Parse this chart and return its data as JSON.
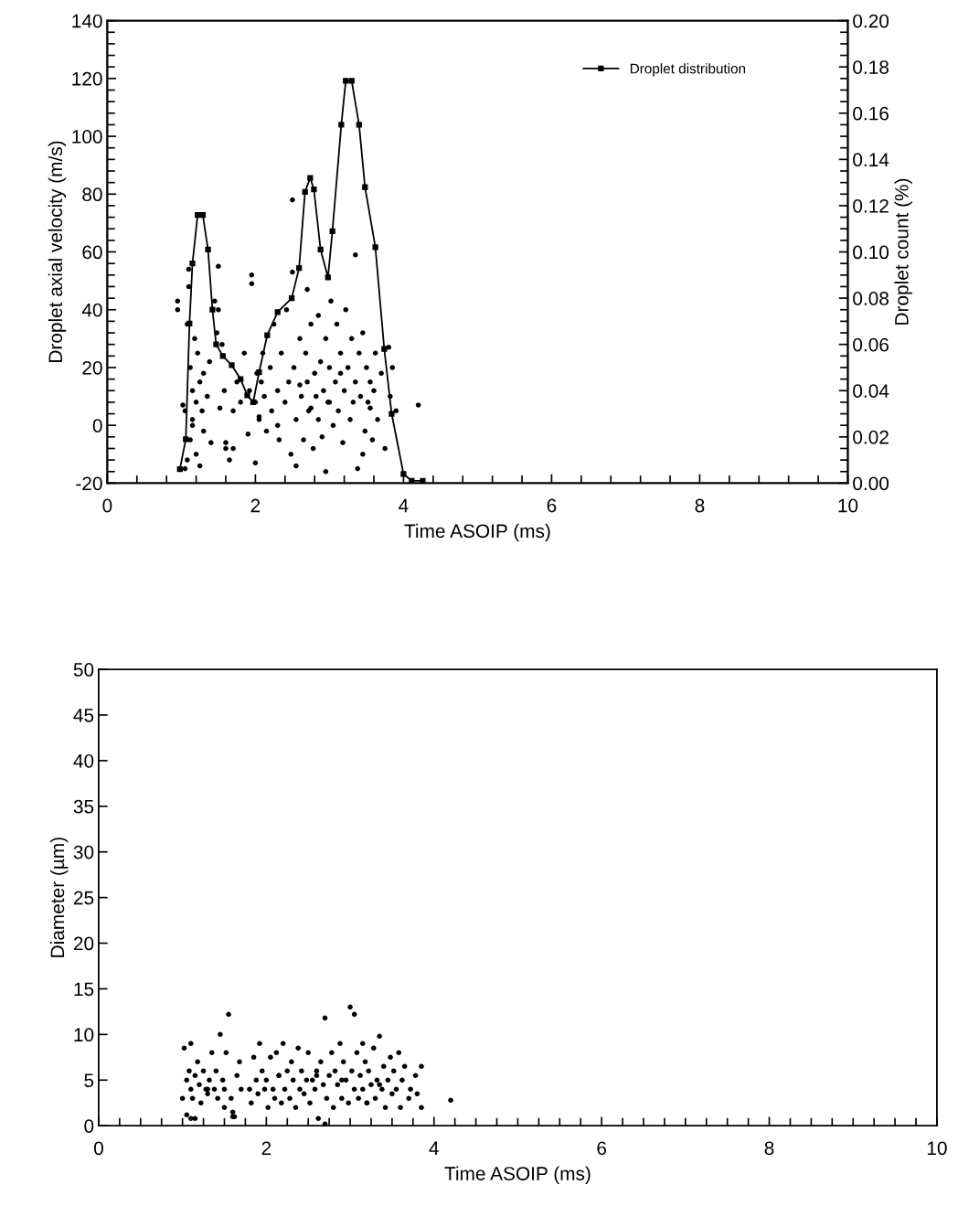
{
  "chart_data": [
    {
      "type": "scatter",
      "xlabel": "Time ASOIP (ms)",
      "ylabel": "Droplet axial velocity (m/s)",
      "y2label": "Droplet count (%)",
      "legend": "top right",
      "grid": false,
      "marker": "circle",
      "xlim": [
        0,
        10
      ],
      "ylim": [
        -20,
        140
      ],
      "y2lim": [
        0,
        0.2
      ],
      "xticks": [
        0,
        {
          "value": 0.4,
          "label": null
        },
        {
          "value": 0.8,
          "label": null
        },
        {
          "value": 1.2,
          "label": null
        },
        {
          "value": 1.6,
          "label": null
        },
        2,
        {
          "value": 2.4,
          "label": null
        },
        {
          "value": 2.8,
          "label": null
        },
        {
          "value": 3.2,
          "label": null
        },
        {
          "value": 3.6,
          "label": null
        },
        4,
        {
          "value": 4.4,
          "label": null
        },
        {
          "value": 4.8,
          "label": null
        },
        {
          "value": 5.2,
          "label": null
        },
        {
          "value": 5.6,
          "label": null
        },
        6,
        {
          "value": 6.4,
          "label": null
        },
        {
          "value": 6.8,
          "label": null
        },
        {
          "value": 7.2,
          "label": null
        },
        {
          "value": 7.6,
          "label": null
        },
        8,
        {
          "value": 8.4,
          "label": null
        },
        {
          "value": 8.8,
          "label": null
        },
        {
          "value": 9.2,
          "label": null
        },
        {
          "value": 9.6,
          "label": null
        },
        10
      ],
      "yticks": [
        -20,
        {
          "value": -16,
          "label": null
        },
        {
          "value": -12,
          "label": null
        },
        {
          "value": -8,
          "label": null
        },
        {
          "value": -4,
          "label": null
        },
        0,
        {
          "value": 4,
          "label": null
        },
        {
          "value": 8,
          "label": null
        },
        {
          "value": 12,
          "label": null
        },
        {
          "value": 16,
          "label": null
        },
        20,
        {
          "value": 24,
          "label": null
        },
        {
          "value": 28,
          "label": null
        },
        {
          "value": 32,
          "label": null
        },
        {
          "value": 36,
          "label": null
        },
        40,
        {
          "value": 44,
          "label": null
        },
        {
          "value": 48,
          "label": null
        },
        {
          "value": 52,
          "label": null
        },
        {
          "value": 56,
          "label": null
        },
        60,
        {
          "value": 64,
          "label": null
        },
        {
          "value": 68,
          "label": null
        },
        {
          "value": 72,
          "label": null
        },
        {
          "value": 76,
          "label": null
        },
        80,
        {
          "value": 84,
          "label": null
        },
        {
          "value": 88,
          "label": null
        },
        {
          "value": 92,
          "label": null
        },
        {
          "value": 96,
          "label": null
        },
        100,
        {
          "value": 104,
          "label": null
        },
        {
          "value": 108,
          "label": null
        },
        {
          "value": 112,
          "label": null
        },
        {
          "value": 116,
          "label": null
        },
        120,
        {
          "value": 124,
          "label": null
        },
        {
          "value": 128,
          "label": null
        },
        {
          "value": 132,
          "label": null
        },
        {
          "value": 136,
          "label": null
        },
        140
      ],
      "y2ticks": [
        {
          "value": 0,
          "label": "0.00"
        },
        {
          "value": 0.005,
          "label": null
        },
        {
          "value": 0.01,
          "label": null
        },
        {
          "value": 0.015,
          "label": null
        },
        {
          "value": 0.02,
          "label": "0.02"
        },
        {
          "value": 0.025,
          "label": null
        },
        {
          "value": 0.03,
          "label": null
        },
        {
          "value": 0.035,
          "label": null
        },
        {
          "value": 0.04,
          "label": "0.04"
        },
        {
          "value": 0.045,
          "label": null
        },
        {
          "value": 0.05,
          "label": null
        },
        {
          "value": 0.055,
          "label": null
        },
        {
          "value": 0.06,
          "label": "0.06"
        },
        {
          "value": 0.065,
          "label": null
        },
        {
          "value": 0.07,
          "label": null
        },
        {
          "value": 0.075,
          "label": null
        },
        {
          "value": 0.08,
          "label": "0.08"
        },
        {
          "value": 0.085,
          "label": null
        },
        {
          "value": 0.09,
          "label": null
        },
        {
          "value": 0.095,
          "label": null
        },
        {
          "value": 0.1,
          "label": "0.10"
        },
        {
          "value": 0.105,
          "label": null
        },
        {
          "value": 0.11,
          "label": null
        },
        {
          "value": 0.115,
          "label": null
        },
        {
          "value": 0.12,
          "label": "0.12"
        },
        {
          "value": 0.125,
          "label": null
        },
        {
          "value": 0.13,
          "label": null
        },
        {
          "value": 0.135,
          "label": null
        },
        {
          "value": 0.14,
          "label": "0.14"
        },
        {
          "value": 0.145,
          "label": null
        },
        {
          "value": 0.15,
          "label": null
        },
        {
          "value": 0.155,
          "label": null
        },
        {
          "value": 0.16,
          "label": "0.16"
        },
        {
          "value": 0.165,
          "label": null
        },
        {
          "value": 0.17,
          "label": null
        },
        {
          "value": 0.175,
          "label": null
        },
        {
          "value": 0.18,
          "label": "0.18"
        },
        {
          "value": 0.185,
          "label": null
        },
        {
          "value": 0.19,
          "label": null
        },
        {
          "value": 0.195,
          "label": null
        },
        {
          "value": 0.2,
          "label": "0.20"
        }
      ],
      "series": [
        {
          "color": "#000000",
          "x": [
            0.95,
            0.95,
            1.05,
            1.05,
            1.08,
            1.1,
            1.1,
            1.12,
            1.12,
            1.15,
            1.15,
            1.18,
            1.2,
            1.2,
            1.22,
            1.25,
            1.28,
            1.3,
            1.3,
            1.35,
            1.38,
            1.4,
            1.45,
            1.48,
            1.5,
            1.5,
            1.52,
            1.55,
            1.58,
            1.6,
            1.65,
            1.7,
            1.75,
            1.8,
            1.85,
            1.9,
            1.92,
            1.95,
            1.95,
            2.0,
            2.0,
            2.02,
            2.05,
            2.08,
            2.1,
            2.12,
            2.15,
            2.2,
            2.22,
            2.25,
            2.3,
            2.32,
            2.35,
            2.4,
            2.42,
            2.45,
            2.48,
            2.5,
            2.5,
            2.52,
            2.55,
            2.55,
            2.6,
            2.62,
            2.65,
            2.68,
            2.7,
            2.7,
            2.72,
            2.75,
            2.78,
            2.8,
            2.82,
            2.85,
            2.85,
            2.88,
            2.9,
            2.92,
            2.95,
            2.95,
            2.98,
            3.0,
            3.02,
            3.05,
            3.08,
            3.1,
            3.12,
            3.15,
            3.18,
            3.2,
            3.22,
            3.25,
            3.28,
            3.3,
            3.32,
            3.35,
            3.35,
            3.38,
            3.4,
            3.42,
            3.45,
            3.48,
            3.5,
            3.52,
            3.55,
            3.58,
            3.6,
            3.62,
            3.65,
            3.7,
            3.75,
            3.8,
            3.82,
            3.85,
            3.9,
            4.2,
            1.02,
            1.08,
            1.15,
            1.25,
            1.6,
            1.7,
            2.05,
            2.3,
            2.6,
            2.75,
            3.0,
            3.15,
            3.45,
            3.55
          ],
          "values": [
            43,
            40,
            -15,
            5,
            35,
            54,
            48,
            20,
            -5,
            12,
            2,
            30,
            8,
            -10,
            25,
            15,
            5,
            -2,
            18,
            10,
            22,
            -6,
            43,
            32,
            55,
            40,
            6,
            28,
            12,
            -8,
            -12,
            5,
            15,
            8,
            25,
            -3,
            12,
            52,
            49,
            8,
            -13,
            18,
            2,
            15,
            25,
            10,
            -2,
            20,
            5,
            35,
            12,
            -5,
            25,
            8,
            40,
            15,
            -10,
            78,
            53,
            20,
            2,
            -14,
            30,
            10,
            -5,
            25,
            47,
            15,
            5,
            35,
            -8,
            18,
            10,
            38,
            2,
            22,
            -4,
            12,
            30,
            -16,
            8,
            20,
            43,
            0,
            15,
            35,
            5,
            25,
            -6,
            12,
            40,
            20,
            2,
            30,
            8,
            59,
            15,
            -15,
            25,
            10,
            32,
            -2,
            20,
            8,
            15,
            -5,
            12,
            25,
            2,
            18,
            -8,
            27,
            10,
            20,
            5,
            7,
            7,
            -12,
            0,
            -14,
            -6,
            -8,
            3,
            0,
            14,
            6,
            8,
            18,
            -10,
            6
          ]
        },
        {
          "type": "line",
          "axis": "y2",
          "name": "Droplet distribution",
          "color": "#000000",
          "marker": "square",
          "x": [
            0.98,
            1.06,
            1.11,
            1.15,
            1.22,
            1.29,
            1.36,
            1.42,
            1.47,
            1.56,
            1.68,
            1.8,
            1.89,
            1.97,
            2.05,
            2.16,
            2.3,
            2.49,
            2.59,
            2.67,
            2.74,
            2.79,
            2.88,
            2.98,
            3.04,
            3.16,
            3.22,
            3.3,
            3.4,
            3.48,
            3.62,
            3.74,
            3.84,
            4.0,
            4.11,
            4.26
          ],
          "values": [
            0.006,
            0.019,
            0.069,
            0.095,
            0.116,
            0.116,
            0.101,
            0.075,
            0.06,
            0.055,
            0.051,
            0.045,
            0.038,
            0.035,
            0.048,
            0.064,
            0.074,
            0.08,
            0.093,
            0.126,
            0.132,
            0.127,
            0.101,
            0.089,
            0.109,
            0.155,
            0.174,
            0.174,
            0.155,
            0.128,
            0.102,
            0.058,
            0.03,
            0.004,
            0.001,
            0.001
          ]
        }
      ]
    },
    {
      "type": "scatter",
      "xlabel": "Time ASOIP (ms)",
      "ylabel": "Diameter (µm)",
      "grid": false,
      "marker": "circle",
      "xlim": [
        0,
        10
      ],
      "ylim": [
        0,
        50
      ],
      "xticks": [
        0,
        {
          "value": 0.25,
          "label": null
        },
        {
          "value": 0.5,
          "label": null
        },
        {
          "value": 0.75,
          "label": null
        },
        {
          "value": 1,
          "label": null
        },
        {
          "value": 1.25,
          "label": null
        },
        {
          "value": 1.5,
          "label": null
        },
        {
          "value": 1.75,
          "label": null
        },
        2,
        {
          "value": 2.25,
          "label": null
        },
        {
          "value": 2.5,
          "label": null
        },
        {
          "value": 2.75,
          "label": null
        },
        {
          "value": 3,
          "label": null
        },
        {
          "value": 3.25,
          "label": null
        },
        {
          "value": 3.5,
          "label": null
        },
        {
          "value": 3.75,
          "label": null
        },
        4,
        {
          "value": 4.25,
          "label": null
        },
        {
          "value": 4.5,
          "label": null
        },
        {
          "value": 4.75,
          "label": null
        },
        {
          "value": 5,
          "label": null
        },
        {
          "value": 5.25,
          "label": null
        },
        {
          "value": 5.5,
          "label": null
        },
        {
          "value": 5.75,
          "label": null
        },
        6,
        {
          "value": 6.25,
          "label": null
        },
        {
          "value": 6.5,
          "label": null
        },
        {
          "value": 6.75,
          "label": null
        },
        {
          "value": 7,
          "label": null
        },
        {
          "value": 7.25,
          "label": null
        },
        {
          "value": 7.5,
          "label": null
        },
        {
          "value": 7.75,
          "label": null
        },
        8,
        {
          "value": 8.25,
          "label": null
        },
        {
          "value": 8.5,
          "label": null
        },
        {
          "value": 8.75,
          "label": null
        },
        {
          "value": 9,
          "label": null
        },
        {
          "value": 9.25,
          "label": null
        },
        {
          "value": 9.5,
          "label": null
        },
        {
          "value": 9.75,
          "label": null
        },
        10
      ],
      "yticks": [
        0,
        5,
        10,
        15,
        20,
        25,
        30,
        35,
        40,
        45,
        50
      ],
      "series": [
        {
          "color": "#000000",
          "x": [
            1.0,
            1.02,
            1.05,
            1.05,
            1.08,
            1.1,
            1.1,
            1.12,
            1.15,
            1.15,
            1.18,
            1.2,
            1.22,
            1.25,
            1.28,
            1.3,
            1.32,
            1.35,
            1.38,
            1.4,
            1.42,
            1.45,
            1.48,
            1.5,
            1.5,
            1.52,
            1.55,
            1.58,
            1.6,
            1.62,
            1.65,
            1.68,
            1.7,
            1.8,
            1.82,
            1.85,
            1.88,
            1.9,
            1.92,
            1.95,
            1.98,
            2.0,
            2.02,
            2.05,
            2.08,
            2.1,
            2.12,
            2.15,
            2.18,
            2.2,
            2.22,
            2.25,
            2.28,
            2.3,
            2.32,
            2.35,
            2.38,
            2.4,
            2.42,
            2.45,
            2.48,
            2.5,
            2.52,
            2.55,
            2.58,
            2.6,
            2.62,
            2.65,
            2.68,
            2.7,
            2.72,
            2.75,
            2.78,
            2.8,
            2.82,
            2.85,
            2.88,
            2.9,
            2.92,
            2.95,
            2.98,
            3.0,
            3.02,
            3.05,
            3.05,
            3.08,
            3.1,
            3.12,
            3.15,
            3.15,
            3.18,
            3.2,
            3.22,
            3.25,
            3.28,
            3.3,
            3.32,
            3.35,
            3.38,
            3.4,
            3.42,
            3.45,
            3.48,
            3.5,
            3.52,
            3.55,
            3.58,
            3.6,
            3.62,
            3.65,
            3.7,
            3.72,
            3.78,
            3.8,
            3.85,
            3.85,
            4.2,
            1.1,
            1.6,
            2.7,
            2.6,
            3.35,
            2.9,
            3.2,
            1.3,
            2.15
          ],
          "values": [
            3,
            8.5,
            5,
            1.2,
            6,
            4,
            9,
            3,
            0.8,
            5.5,
            7,
            4.5,
            2.5,
            6,
            4,
            3.5,
            5,
            8,
            4,
            6,
            3,
            10,
            5,
            4,
            2,
            8,
            12.2,
            3,
            1.5,
            1.0,
            5.5,
            7,
            4,
            4,
            2.5,
            7.5,
            5,
            3.5,
            9,
            6,
            4,
            5,
            2,
            7.5,
            4,
            3,
            8,
            5.5,
            2.5,
            9,
            4,
            6,
            3,
            7,
            5,
            2,
            8.5,
            4,
            6,
            3.5,
            5,
            8,
            2.5,
            5,
            4,
            6,
            0.8,
            7,
            4.5,
            11.8,
            3,
            5.5,
            8,
            2,
            6,
            4.5,
            9,
            3,
            7,
            5,
            2.5,
            13,
            6,
            4,
            12.2,
            8,
            3,
            5.5,
            9,
            4,
            7,
            2.5,
            6,
            4.5,
            8.5,
            3,
            5,
            9.8,
            4,
            6.5,
            2,
            5,
            7.5,
            3.5,
            6,
            4,
            8,
            2,
            5,
            6.5,
            3,
            4,
            5.5,
            3.5,
            6.5,
            2,
            2.8,
            0.8,
            1.0,
            0.2,
            5.5,
            4.5,
            5,
            2.5,
            4,
            5.5
          ]
        }
      ]
    }
  ]
}
